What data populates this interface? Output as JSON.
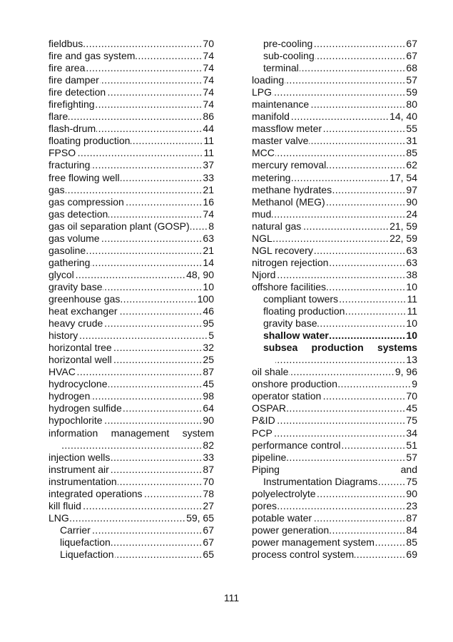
{
  "page_number": "111",
  "left_column": [
    {
      "term": "fieldbus",
      "page": "70"
    },
    {
      "term": "fire and gas system",
      "page": "74"
    },
    {
      "term": "fire area",
      "page": "74"
    },
    {
      "term": "fire damper",
      "page": "74"
    },
    {
      "term": "fire detection",
      "page": "74"
    },
    {
      "term": "firefighting",
      "page": "74"
    },
    {
      "term": "flare",
      "page": "86"
    },
    {
      "term": "flash-drum",
      "page": "44"
    },
    {
      "term": "floating production",
      "page": "11"
    },
    {
      "term": "FPSO",
      "page": "11"
    },
    {
      "term": "fracturing",
      "page": "37"
    },
    {
      "term": "free flowing well",
      "page": "33"
    },
    {
      "term": "gas",
      "page": "21"
    },
    {
      "term": "gas compression",
      "page": "16"
    },
    {
      "term": "gas detection",
      "page": "74"
    },
    {
      "term": "gas oil separation plant (GOSP)",
      "page": "8"
    },
    {
      "term": "gas volume",
      "page": "63"
    },
    {
      "term": "gasoline",
      "page": "21"
    },
    {
      "term": "gathering",
      "page": "14"
    },
    {
      "term": "glycol",
      "page": "48, 90"
    },
    {
      "term": "gravity base",
      "page": "10"
    },
    {
      "term": "greenhouse gas",
      "page": "100"
    },
    {
      "term": "heat exchanger",
      "page": "46"
    },
    {
      "term": "heavy crude",
      "page": "95"
    },
    {
      "term": "history",
      "page": "5"
    },
    {
      "term": "horizontal tree",
      "page": "32"
    },
    {
      "term": "horizontal well",
      "page": "25"
    },
    {
      "term": "HVAC",
      "page": "87"
    },
    {
      "term": "hydrocyclone",
      "page": "45"
    },
    {
      "term": "hydrogen",
      "page": "98"
    },
    {
      "term": "hydrogen sulfide",
      "page": "64"
    },
    {
      "term": "hypochlorite",
      "page": "90"
    },
    {
      "term": "information management system",
      "page": "82",
      "wrap": true
    },
    {
      "term": "injection wells",
      "page": "33"
    },
    {
      "term": "instrument air",
      "page": "87"
    },
    {
      "term": "instrumentation",
      "page": "70"
    },
    {
      "term": "integrated operations",
      "page": "78"
    },
    {
      "term": "kill fluid",
      "page": "27"
    },
    {
      "term": "LNG",
      "page": "59, 65"
    },
    {
      "term": "Carrier",
      "page": "67",
      "indent": true
    },
    {
      "term": "liquefaction",
      "page": "67",
      "indent": true
    },
    {
      "term": "Liquefaction",
      "page": "65",
      "indent": true
    }
  ],
  "right_column": [
    {
      "term": "pre-cooling",
      "page": "67",
      "indent": true
    },
    {
      "term": "sub-cooling",
      "page": "67",
      "indent": true
    },
    {
      "term": "terminal",
      "page": "68",
      "indent": true
    },
    {
      "term": "loading",
      "page": "57"
    },
    {
      "term": "LPG",
      "page": "59"
    },
    {
      "term": "maintenance",
      "page": "80"
    },
    {
      "term": "manifold",
      "page": "14, 40"
    },
    {
      "term": "massflow meter",
      "page": "55"
    },
    {
      "term": "master valve",
      "page": "31"
    },
    {
      "term": "MCC",
      "page": "85"
    },
    {
      "term": "mercury removal",
      "page": "62"
    },
    {
      "term": "metering",
      "page": "17, 54"
    },
    {
      "term": "methane hydrates",
      "page": "97"
    },
    {
      "term": "Methanol  (MEG)",
      "page": "90"
    },
    {
      "term": "mud",
      "page": "24"
    },
    {
      "term": "natural gas",
      "page": "21, 59"
    },
    {
      "term": "NGL",
      "page": "22, 59"
    },
    {
      "term": "NGL recovery",
      "page": "63"
    },
    {
      "term": "nitrogen rejection",
      "page": "63"
    },
    {
      "term": "Njord",
      "page": "38"
    },
    {
      "term": "offshore facilities",
      "page": "10"
    },
    {
      "term": "compliant towers",
      "page": "11",
      "indent": true
    },
    {
      "term": "floating production",
      "page": "11",
      "indent": true
    },
    {
      "term": "gravity base",
      "page": "10",
      "indent": true
    },
    {
      "term": "shallow water",
      "page": "10",
      "indent": true,
      "bold": true
    },
    {
      "term": "subsea production systems",
      "page": "13",
      "indent": true,
      "bold": true,
      "wrap": true
    },
    {
      "term": "oil shale",
      "page": "9, 96"
    },
    {
      "term": "onshore production",
      "page": "9"
    },
    {
      "term": "operator station",
      "page": "70"
    },
    {
      "term": "OSPAR",
      "page": "45"
    },
    {
      "term": "P&ID",
      "page": "75"
    },
    {
      "term": "PCP",
      "page": "34"
    },
    {
      "term": "performance control",
      "page": "51"
    },
    {
      "term": "pipeline",
      "page": "57"
    },
    {
      "term": "Piping and Instrumentation Diagrams",
      "page": "75",
      "wrap": true,
      "wrap_split": 2
    },
    {
      "term": "polyelectrolyte",
      "page": "90"
    },
    {
      "term": "pores",
      "page": "23"
    },
    {
      "term": "potable water",
      "page": "87"
    },
    {
      "term": "power generation",
      "page": "84"
    },
    {
      "term": "power management system",
      "page": "85"
    },
    {
      "term": "process control system",
      "page": "69"
    }
  ]
}
